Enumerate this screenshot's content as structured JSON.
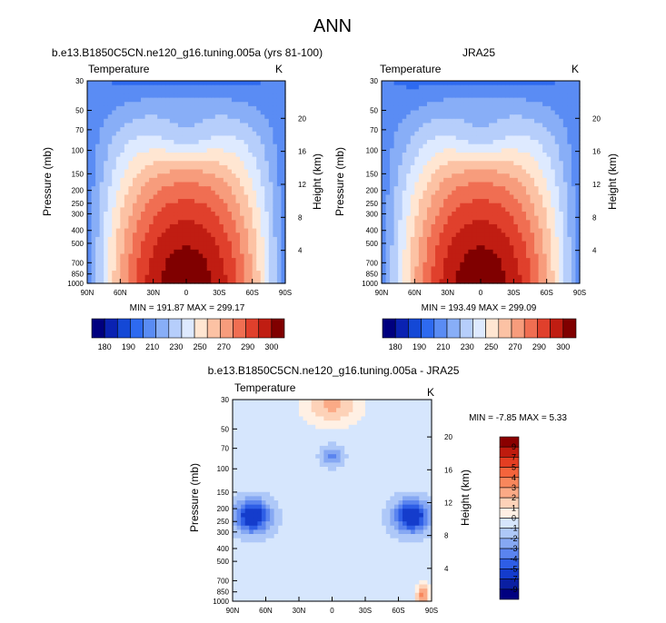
{
  "page_title": "ANN",
  "chart_data": [
    {
      "id": "model",
      "type": "contour",
      "title": "b.e13.B1850C5CN.ne120_g16.tuning.005a (yrs 81-100)",
      "variable": "Temperature",
      "units": "K",
      "ylabel": "Pressure (mb)",
      "ylabel_right": "Height (km)",
      "pressure_ticks": [
        "30",
        "50",
        "70",
        "100",
        "150",
        "200",
        "250",
        "300",
        "400",
        "500",
        "700",
        "850",
        "1000"
      ],
      "height_ticks": [
        "20",
        "16",
        "12",
        "8",
        "4"
      ],
      "x_ticks": [
        "90N",
        "60N",
        "30N",
        "0",
        "30S",
        "60S",
        "90S"
      ],
      "stats": "MIN = 191.87  MAX = 299.17",
      "min": 191.87,
      "max": 299.17,
      "colorbar_levels": [
        180,
        190,
        200,
        210,
        220,
        230,
        240,
        250,
        260,
        270,
        280,
        290,
        300
      ],
      "colorbar_labels": [
        "180",
        "190",
        "210",
        "230",
        "250",
        "270",
        "290",
        "300"
      ]
    },
    {
      "id": "obs",
      "type": "contour",
      "title": "JRA25",
      "variable": "Temperature",
      "units": "K",
      "ylabel": "Pressure (mb)",
      "ylabel_right": "Height (km)",
      "pressure_ticks": [
        "30",
        "50",
        "70",
        "100",
        "150",
        "200",
        "250",
        "300",
        "400",
        "500",
        "700",
        "850",
        "1000"
      ],
      "height_ticks": [
        "20",
        "16",
        "12",
        "8",
        "4"
      ],
      "x_ticks": [
        "90N",
        "60N",
        "30N",
        "0",
        "30S",
        "60S",
        "90S"
      ],
      "stats": "MIN = 193.49  MAX = 299.09",
      "min": 193.49,
      "max": 299.09,
      "colorbar_levels": [
        180,
        190,
        200,
        210,
        220,
        230,
        240,
        250,
        260,
        270,
        280,
        290,
        300
      ],
      "colorbar_labels": [
        "180",
        "190",
        "210",
        "230",
        "250",
        "270",
        "290",
        "300"
      ]
    },
    {
      "id": "diff",
      "type": "contour",
      "title": "b.e13.B1850C5CN.ne120_g16.tuning.005a - JRA25",
      "variable": "Temperature",
      "units": "K",
      "ylabel": "Pressure (mb)",
      "ylabel_right": "Height (km)",
      "pressure_ticks": [
        "30",
        "50",
        "70",
        "100",
        "150",
        "200",
        "250",
        "300",
        "400",
        "500",
        "700",
        "850",
        "1000"
      ],
      "height_ticks": [
        "20",
        "16",
        "12",
        "8",
        "4"
      ],
      "x_ticks": [
        "90N",
        "60N",
        "30N",
        "0",
        "30S",
        "60S",
        "90S"
      ],
      "stats": "MIN =  -7.85  MAX =   5.33",
      "min": -7.85,
      "max": 5.33,
      "colorbar_labels": [
        "9",
        "7",
        "5",
        "4",
        "3",
        "2",
        "1",
        "0",
        "-1",
        "-2",
        "-3",
        "-4",
        "-5",
        "-7",
        "-9"
      ]
    }
  ],
  "colors": {
    "abs_palette": [
      "#00007f",
      "#0a22b2",
      "#1448d6",
      "#2e6af0",
      "#5a8cf4",
      "#88aef7",
      "#b6cefb",
      "#deeaff",
      "#ffe6d2",
      "#fcc2a4",
      "#f79c7c",
      "#f06e52",
      "#e0402c",
      "#c01d12",
      "#800000"
    ],
    "diff_palette": [
      "#8a0000",
      "#bf1b0e",
      "#e43e22",
      "#f4643c",
      "#f8875c",
      "#fbaa86",
      "#fdd2b8",
      "#fff0e4",
      "#d6e6fd",
      "#aec8f8",
      "#86a8f3",
      "#5a84ef",
      "#2e5ee6",
      "#143ccc",
      "#0a1fa2",
      "#000080"
    ],
    "frame": "#000000"
  }
}
